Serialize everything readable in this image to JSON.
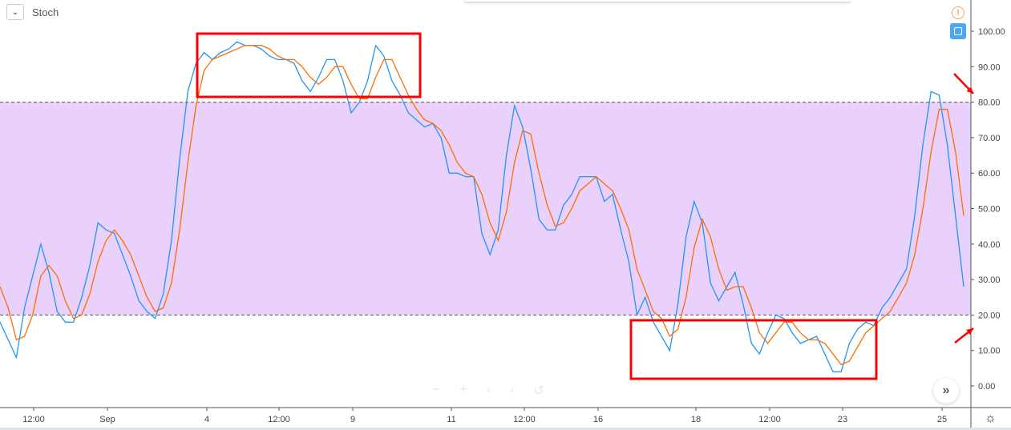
{
  "legend": {
    "title": "Stoch",
    "collapse_icon": "chevron-down-icon"
  },
  "colors": {
    "k": "#2196f3",
    "d": "#ff6d00",
    "band": "#e9d1fc",
    "highlight": "#ff0000"
  },
  "controls": {
    "zoom_out": "−",
    "zoom_in": "+",
    "left": "‹",
    "right": "›",
    "reset": "↺",
    "scroll_right": "»"
  },
  "chart_data": {
    "type": "line",
    "ylim": [
      0,
      100
    ],
    "y_ticks": [
      "100.00",
      "90.00",
      "80.00",
      "70.00",
      "60.00",
      "50.00",
      "40.00",
      "30.00",
      "20.00",
      "10.00",
      "0.00"
    ],
    "x_ticks": [
      "12:00",
      "Sep",
      "4",
      "12:00",
      "9",
      "11",
      "12:00",
      "16",
      "18",
      "12:00",
      "23",
      "25"
    ],
    "bands": {
      "upper": 80,
      "lower": 20
    },
    "grid": false,
    "series": [
      {
        "values": [
          18,
          13,
          8,
          22,
          31,
          40,
          32,
          21,
          18,
          18,
          25,
          34,
          46,
          44,
          43,
          37,
          31,
          24,
          21,
          19,
          26,
          41,
          64,
          83,
          91,
          94,
          92,
          94,
          95,
          97,
          96,
          96,
          95,
          93,
          92,
          92,
          91,
          86,
          83,
          87,
          92,
          92,
          86,
          77,
          80,
          86,
          96,
          93,
          86,
          82,
          77,
          75,
          73,
          74,
          70,
          60,
          60,
          59,
          59,
          43,
          37,
          44,
          65,
          79,
          73,
          61,
          47,
          44,
          44,
          51,
          54,
          59,
          59,
          59,
          52,
          54,
          44,
          35,
          20,
          25,
          18,
          14,
          10,
          23,
          42,
          52,
          46,
          29,
          24,
          28,
          32,
          23,
          12,
          9,
          15,
          20,
          19,
          15,
          12,
          13,
          14,
          9,
          4,
          4,
          12,
          16,
          18,
          17,
          22,
          25,
          29,
          33,
          48,
          68,
          83,
          82,
          68,
          48,
          28
        ]
      },
      {
        "values": [
          28,
          22,
          13,
          14,
          20,
          31,
          34,
          31,
          24,
          19,
          20,
          26,
          35,
          41,
          44,
          41,
          37,
          31,
          25,
          21,
          22,
          29,
          44,
          63,
          79,
          89,
          92,
          93,
          94,
          95,
          96,
          96,
          96,
          95,
          93,
          92,
          92,
          90,
          87,
          85,
          87,
          90,
          90,
          85,
          81,
          81,
          87,
          92,
          92,
          87,
          82,
          78,
          75,
          74,
          72,
          68,
          63,
          60,
          59,
          54,
          46,
          41,
          49,
          63,
          72,
          71,
          60,
          51,
          45,
          46,
          50,
          55,
          57,
          59,
          57,
          55,
          50,
          44,
          33,
          27,
          21,
          19,
          14,
          16,
          25,
          39,
          47,
          42,
          33,
          27,
          28,
          28,
          22,
          15,
          12,
          15,
          18,
          18,
          15,
          13,
          13,
          12,
          9,
          6,
          7,
          11,
          15,
          17,
          19,
          21,
          25,
          29,
          37,
          50,
          66,
          78,
          78,
          66,
          48
        ]
      }
    ]
  }
}
